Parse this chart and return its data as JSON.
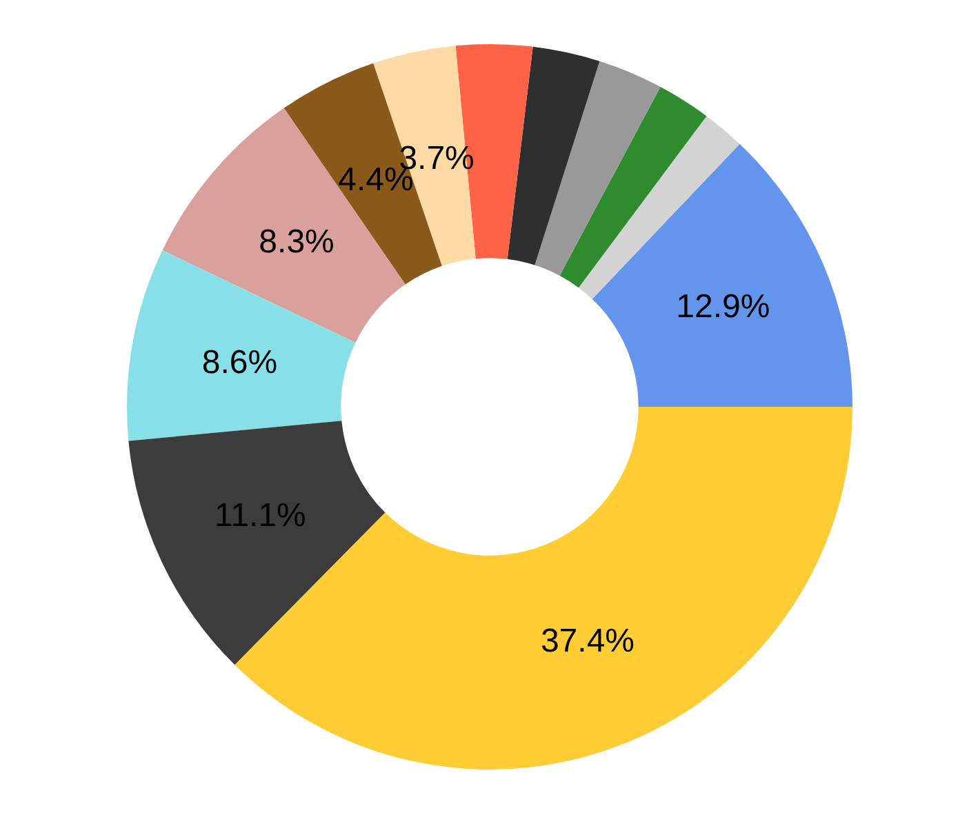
{
  "chart_data": {
    "type": "donut",
    "categories": [
      null,
      null,
      null,
      null,
      null,
      null,
      null,
      null,
      null,
      null,
      null,
      null
    ],
    "values": [
      12.9,
      1.9,
      2.4,
      2.9,
      3.0,
      3.4,
      3.7,
      4.4,
      8.3,
      8.6,
      11.1,
      37.4
    ],
    "value_labels": [
      "12.9%",
      null,
      null,
      null,
      null,
      null,
      "3.7%",
      "4.4%",
      "8.3%",
      "8.6%",
      "11.1%",
      "37.4%"
    ],
    "colors": [
      "#6495ed",
      "#d3d3d3",
      "#2e8b2e",
      "#999999",
      "#2f2f2f",
      "#ff6347",
      "#ffdaa5",
      "#8b5a1b",
      "#d9a09c",
      "#87e0e8",
      "#3c3c3c",
      "#ffcc33"
    ]
  }
}
